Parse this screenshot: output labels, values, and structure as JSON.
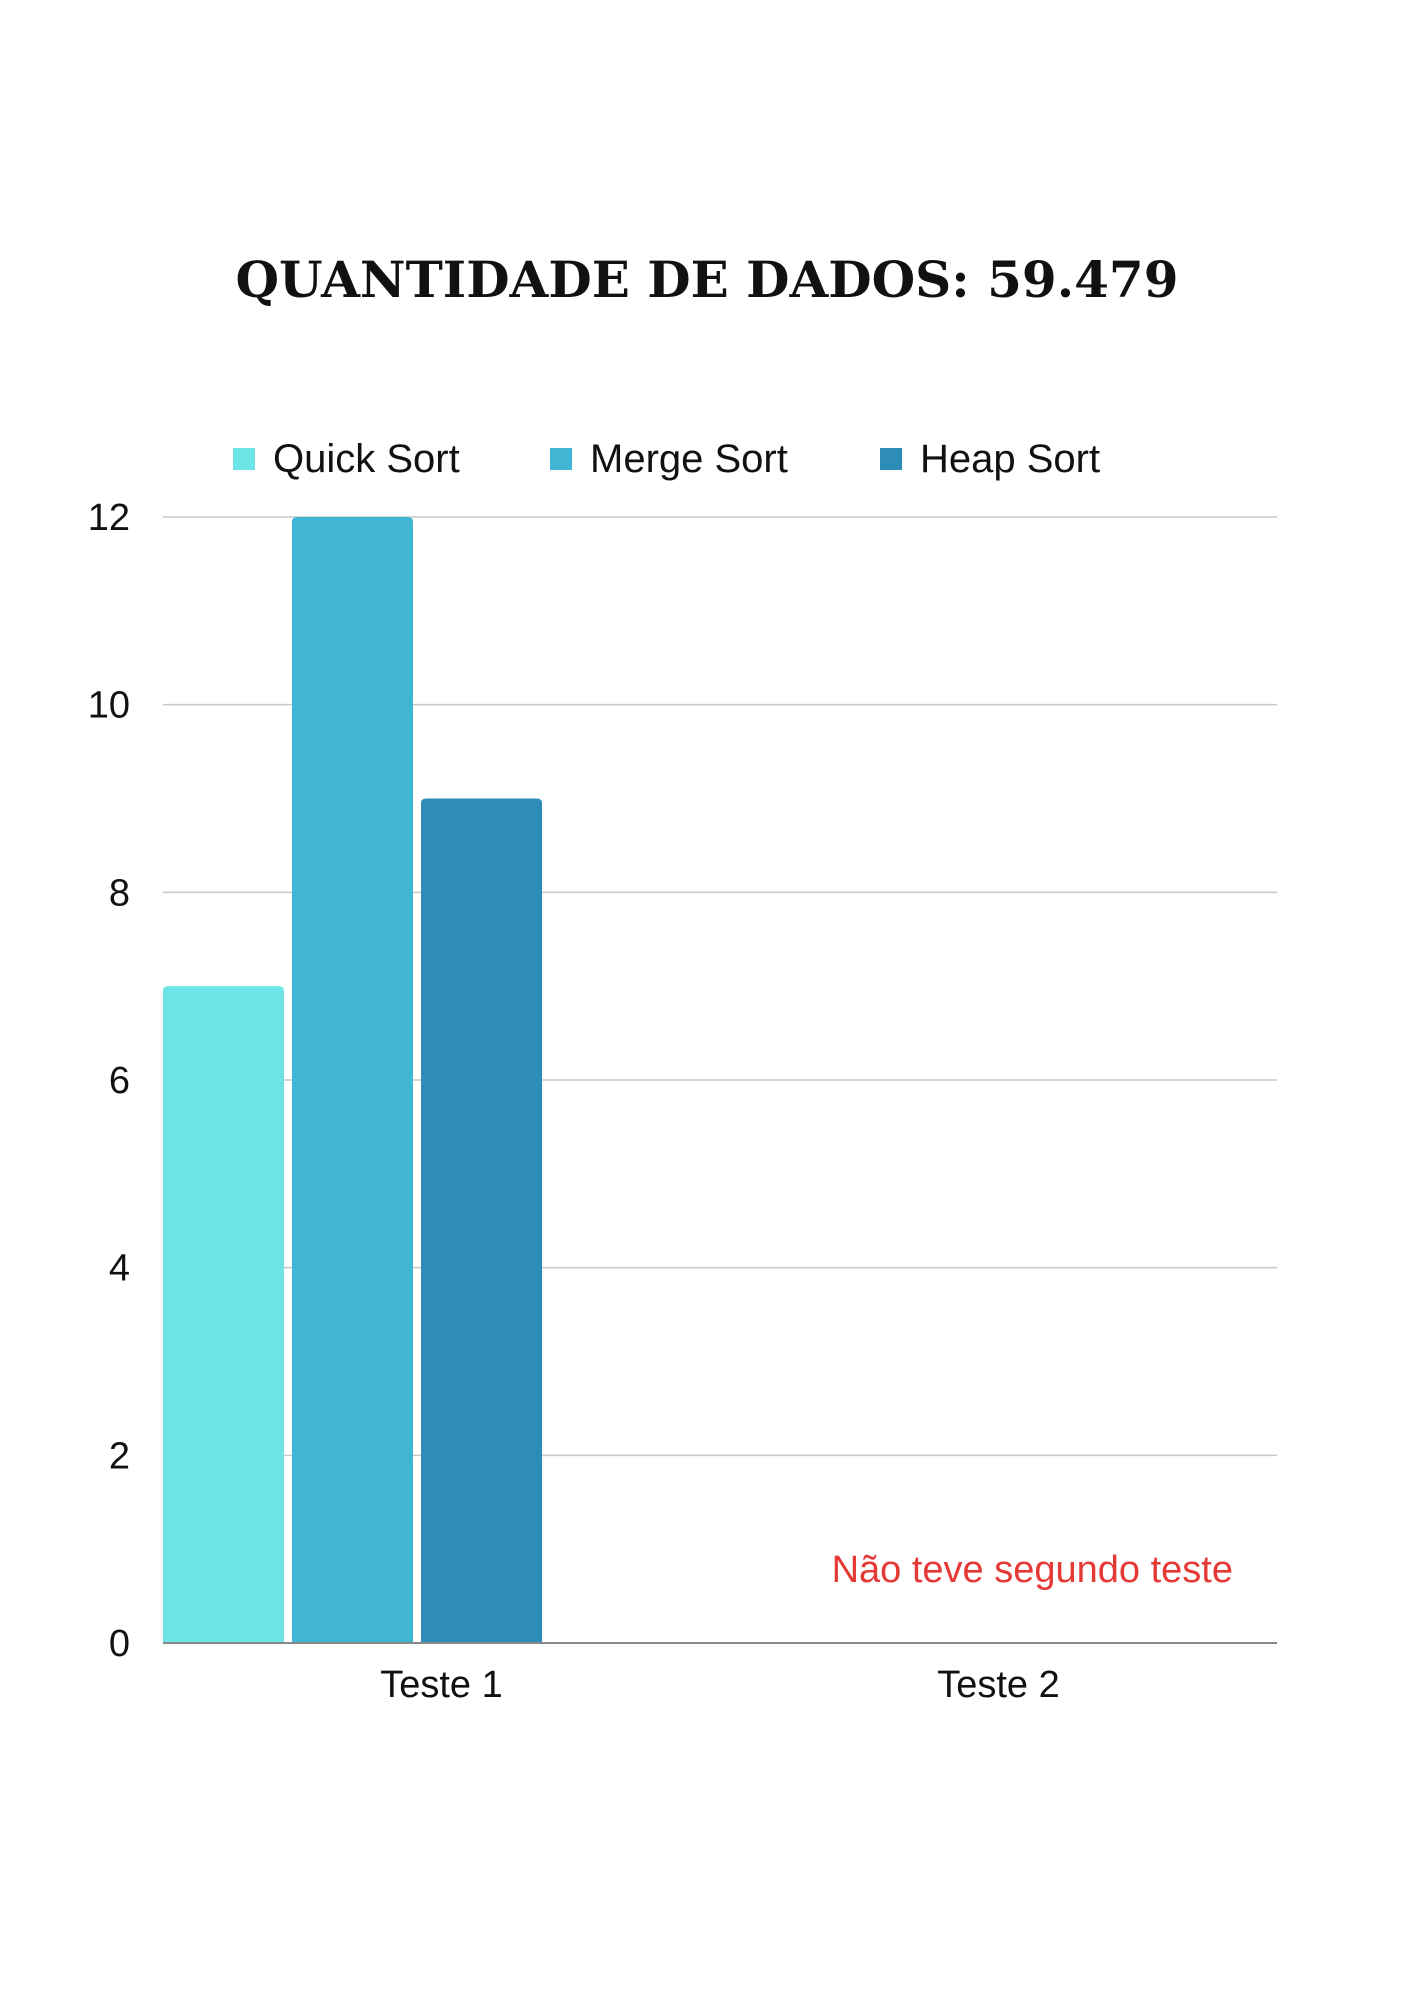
{
  "chart_data": {
    "type": "bar",
    "title": "QUANTIDADE DE DADOS: 59.479",
    "categories": [
      "Teste 1",
      "Teste 2"
    ],
    "series": [
      {
        "name": "Quick Sort",
        "values": [
          7,
          null
        ],
        "color": "#6de5e8"
      },
      {
        "name": "Merge Sort",
        "values": [
          12,
          null
        ],
        "color": "#41b6d4"
      },
      {
        "name": "Heap Sort",
        "values": [
          9,
          null
        ],
        "color": "#2e8cb9"
      }
    ],
    "ylim": [
      0,
      12
    ],
    "yticks": [
      "0",
      "2",
      "4",
      "6",
      "8",
      "10",
      "12"
    ],
    "grid": true,
    "legend_position": "top",
    "annotation": {
      "text": "Não teve segundo teste",
      "color": "#e53935"
    }
  }
}
